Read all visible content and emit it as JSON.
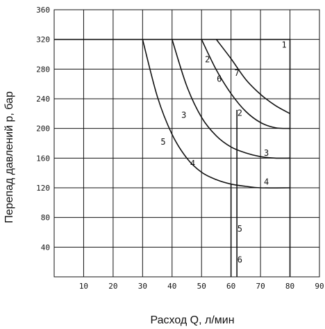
{
  "chart_data": {
    "type": "line",
    "title": "",
    "xlabel": "Расход Q, л/мин",
    "ylabel": "Перепад давлений p, бар",
    "xlim": [
      0,
      90
    ],
    "ylim": [
      0,
      360
    ],
    "grid": true,
    "x_ticks": [
      "10",
      "20",
      "30",
      "40",
      "50",
      "60",
      "70",
      "80",
      "90"
    ],
    "y_ticks": [
      "40",
      "80",
      "120",
      "160",
      "200",
      "240",
      "280",
      "320",
      "360"
    ],
    "series": [
      {
        "name": "1",
        "points": [
          [
            0,
            320
          ],
          [
            80,
            320
          ],
          [
            80,
            0
          ]
        ]
      },
      {
        "name": "7",
        "points": [
          [
            55,
            320
          ],
          [
            60,
            294
          ],
          [
            65,
            266
          ],
          [
            70,
            246
          ],
          [
            75,
            231
          ],
          [
            80,
            220
          ]
        ]
      },
      {
        "name": "2",
        "points": [
          [
            50,
            320
          ],
          [
            55,
            279
          ],
          [
            60,
            247
          ],
          [
            65,
            223
          ],
          [
            70,
            208
          ],
          [
            75,
            201
          ],
          [
            80,
            200
          ]
        ]
      },
      {
        "name": "3",
        "points": [
          [
            40,
            320
          ],
          [
            45,
            257
          ],
          [
            50,
            215
          ],
          [
            55,
            190
          ],
          [
            60,
            175
          ],
          [
            65,
            167
          ],
          [
            70,
            162
          ],
          [
            75,
            160
          ],
          [
            80,
            160
          ]
        ]
      },
      {
        "name": "4",
        "points": [
          [
            30,
            320
          ],
          [
            35,
            243
          ],
          [
            40,
            192
          ],
          [
            45,
            160
          ],
          [
            50,
            141
          ],
          [
            55,
            131
          ],
          [
            60,
            125
          ],
          [
            65,
            122
          ],
          [
            70,
            120
          ],
          [
            80,
            120
          ]
        ]
      },
      {
        "name": "5",
        "points": [
          [
            60,
            125
          ],
          [
            60,
            0
          ]
        ]
      },
      {
        "name": "6",
        "points": [
          [
            62,
            225
          ],
          [
            62,
            0
          ]
        ]
      }
    ],
    "curve_labels": [
      {
        "text": "1",
        "x": 78,
        "y": 309
      },
      {
        "text": "2",
        "x": 52,
        "y": 289
      },
      {
        "text": "6",
        "x": 56,
        "y": 263
      },
      {
        "text": "7",
        "x": 62,
        "y": 271
      },
      {
        "text": "3",
        "x": 44,
        "y": 214
      },
      {
        "text": "2",
        "x": 63,
        "y": 217
      },
      {
        "text": "5",
        "x": 37,
        "y": 178
      },
      {
        "text": "3",
        "x": 72,
        "y": 163
      },
      {
        "text": "4",
        "x": 47,
        "y": 149
      },
      {
        "text": "4",
        "x": 72,
        "y": 124
      },
      {
        "text": "5",
        "x": 63,
        "y": 61
      },
      {
        "text": "6",
        "x": 63,
        "y": 19
      }
    ]
  }
}
